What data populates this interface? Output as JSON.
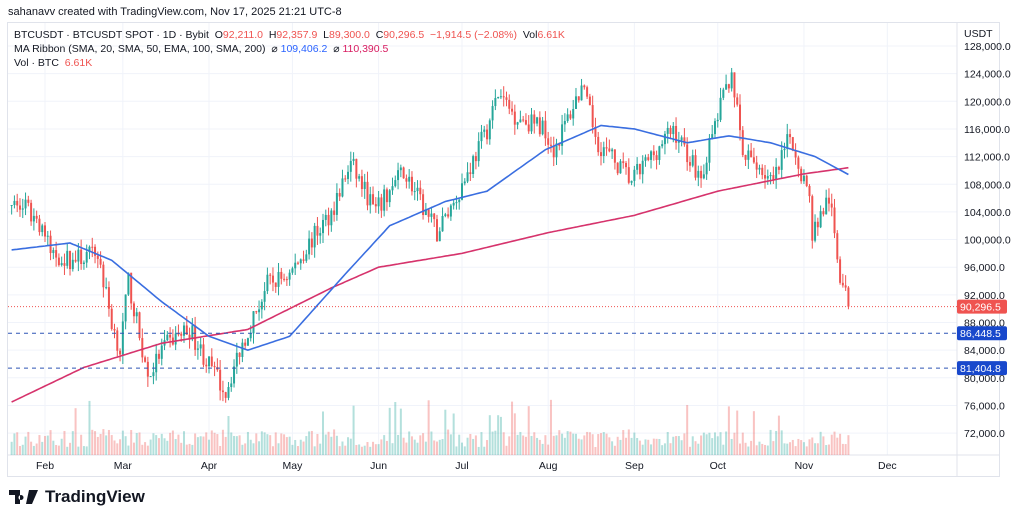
{
  "credit": "sahanavv created with TradingView.com, Nov 17, 2025 21:21 UTC-8",
  "legend": {
    "symbol": "BTCUSDT · BTCUSDT SPOT · 1D · Bybit",
    "o_label": "O",
    "o": "92,211.0",
    "h_label": "H",
    "h": "92,357.9",
    "l_label": "L",
    "l": "89,300.0",
    "c_label": "C",
    "c": "90,296.5",
    "change": "−1,914.5 (−2.08%)",
    "vol_label": "Vol",
    "vol": "6.61K",
    "ma_title": "MA Ribbon (SMA, 20, SMA, 50, EMA, 100, SMA, 200)",
    "ma_sym": "⌀",
    "ma1": "109,406.2",
    "ma2": "110,390.5",
    "vol_title": "Vol · BTC",
    "vol_value": "6.61K"
  },
  "logo": "TradingView",
  "chart_data": {
    "type": "candlestick",
    "currency": "USDT",
    "colors": {
      "up": "#26a69a",
      "down": "#ef5350",
      "ma50": "#3a6ee0",
      "ma200": "#d6336c",
      "levels": "#2f55b5",
      "last": "#ef5350"
    },
    "ylim": [
      70000,
      129000
    ],
    "y_ticks": [
      "128,000.0",
      "124,000.0",
      "120,000.0",
      "116,000.0",
      "112,000.0",
      "108,000.0",
      "104,000.0",
      "100,000.0",
      "96,000.0",
      "92,000.0",
      "88,000.0",
      "84,000.0",
      "80,000.0",
      "76,000.0",
      "72,000.0"
    ],
    "x_ticks": [
      [
        "2025-02-01",
        "Feb"
      ],
      [
        "2025-03-01",
        "Mar"
      ],
      [
        "2025-04-01",
        "Apr"
      ],
      [
        "2025-05-01",
        "May"
      ],
      [
        "2025-06-01",
        "Jun"
      ],
      [
        "2025-07-01",
        "Jul"
      ],
      [
        "2025-08-01",
        "Aug"
      ],
      [
        "2025-09-01",
        "Sep"
      ],
      [
        "2025-10-01",
        "Oct"
      ],
      [
        "2025-11-01",
        "Nov"
      ],
      [
        "2025-12-01",
        "Dec"
      ]
    ],
    "close": [
      [
        "2025-01-20",
        105000
      ],
      [
        "2025-01-25",
        104500
      ],
      [
        "2025-01-31",
        102000
      ],
      [
        "2025-02-03",
        98000
      ],
      [
        "2025-02-10",
        97000
      ],
      [
        "2025-02-20",
        98000
      ],
      [
        "2025-02-25",
        88000
      ],
      [
        "2025-02-28",
        84000
      ],
      [
        "2025-03-03",
        94000
      ],
      [
        "2025-03-10",
        80000
      ],
      [
        "2025-03-15",
        84000
      ],
      [
        "2025-03-20",
        86000
      ],
      [
        "2025-03-25",
        87000
      ],
      [
        "2025-03-31",
        82500
      ],
      [
        "2025-04-07",
        78000
      ],
      [
        "2025-04-12",
        84000
      ],
      [
        "2025-04-22",
        93500
      ],
      [
        "2025-04-30",
        95000
      ],
      [
        "2025-05-08",
        100000
      ],
      [
        "2025-05-15",
        104000
      ],
      [
        "2025-05-22",
        111000
      ],
      [
        "2025-05-31",
        104000
      ],
      [
        "2025-06-10",
        110000
      ],
      [
        "2025-06-17",
        104500
      ],
      [
        "2025-06-22",
        101000
      ],
      [
        "2025-06-30",
        107000
      ],
      [
        "2025-07-10",
        116000
      ],
      [
        "2025-07-14",
        121000
      ],
      [
        "2025-07-20",
        118000
      ],
      [
        "2025-07-31",
        116000
      ],
      [
        "2025-08-03",
        113000
      ],
      [
        "2025-08-13",
        122000
      ],
      [
        "2025-08-19",
        114000
      ],
      [
        "2025-08-31",
        108500
      ],
      [
        "2025-09-05",
        111000
      ],
      [
        "2025-09-15",
        116000
      ],
      [
        "2025-09-25",
        109000
      ],
      [
        "2025-10-01",
        118000
      ],
      [
        "2025-10-06",
        124500
      ],
      [
        "2025-10-10",
        112000
      ],
      [
        "2025-10-15",
        111000
      ],
      [
        "2025-10-21",
        108000
      ],
      [
        "2025-10-27",
        115000
      ],
      [
        "2025-11-03",
        106000
      ],
      [
        "2025-11-04",
        101000
      ],
      [
        "2025-11-10",
        106000
      ],
      [
        "2025-11-14",
        95000
      ],
      [
        "2025-11-17",
        90296.5
      ]
    ],
    "ma50": [
      [
        "2025-01-20",
        98500
      ],
      [
        "2025-02-10",
        99500
      ],
      [
        "2025-02-25",
        97000
      ],
      [
        "2025-03-15",
        91000
      ],
      [
        "2025-04-01",
        86000
      ],
      [
        "2025-04-15",
        84000
      ],
      [
        "2025-04-30",
        86000
      ],
      [
        "2025-05-20",
        95000
      ],
      [
        "2025-06-05",
        102000
      ],
      [
        "2025-06-25",
        105500
      ],
      [
        "2025-07-10",
        107000
      ],
      [
        "2025-07-31",
        113000
      ],
      [
        "2025-08-20",
        116500
      ],
      [
        "2025-09-01",
        116000
      ],
      [
        "2025-09-20",
        114000
      ],
      [
        "2025-10-05",
        115000
      ],
      [
        "2025-10-20",
        114000
      ],
      [
        "2025-11-05",
        112000
      ],
      [
        "2025-11-17",
        109406.2
      ]
    ],
    "ma200": [
      [
        "2025-01-20",
        76500
      ],
      [
        "2025-02-15",
        81500
      ],
      [
        "2025-03-15",
        85000
      ],
      [
        "2025-04-15",
        87000
      ],
      [
        "2025-05-15",
        93000
      ],
      [
        "2025-06-01",
        96000
      ],
      [
        "2025-07-01",
        98000
      ],
      [
        "2025-08-01",
        101000
      ],
      [
        "2025-09-01",
        103500
      ],
      [
        "2025-10-01",
        107000
      ],
      [
        "2025-11-01",
        109500
      ],
      [
        "2025-11-17",
        110390.5
      ]
    ],
    "levels": [
      {
        "value": 86448.5,
        "label": "86,448.5"
      },
      {
        "value": 81404.8,
        "label": "81,404.8"
      }
    ],
    "last_price": {
      "value": 90296.5,
      "label": "90,296.5"
    }
  }
}
